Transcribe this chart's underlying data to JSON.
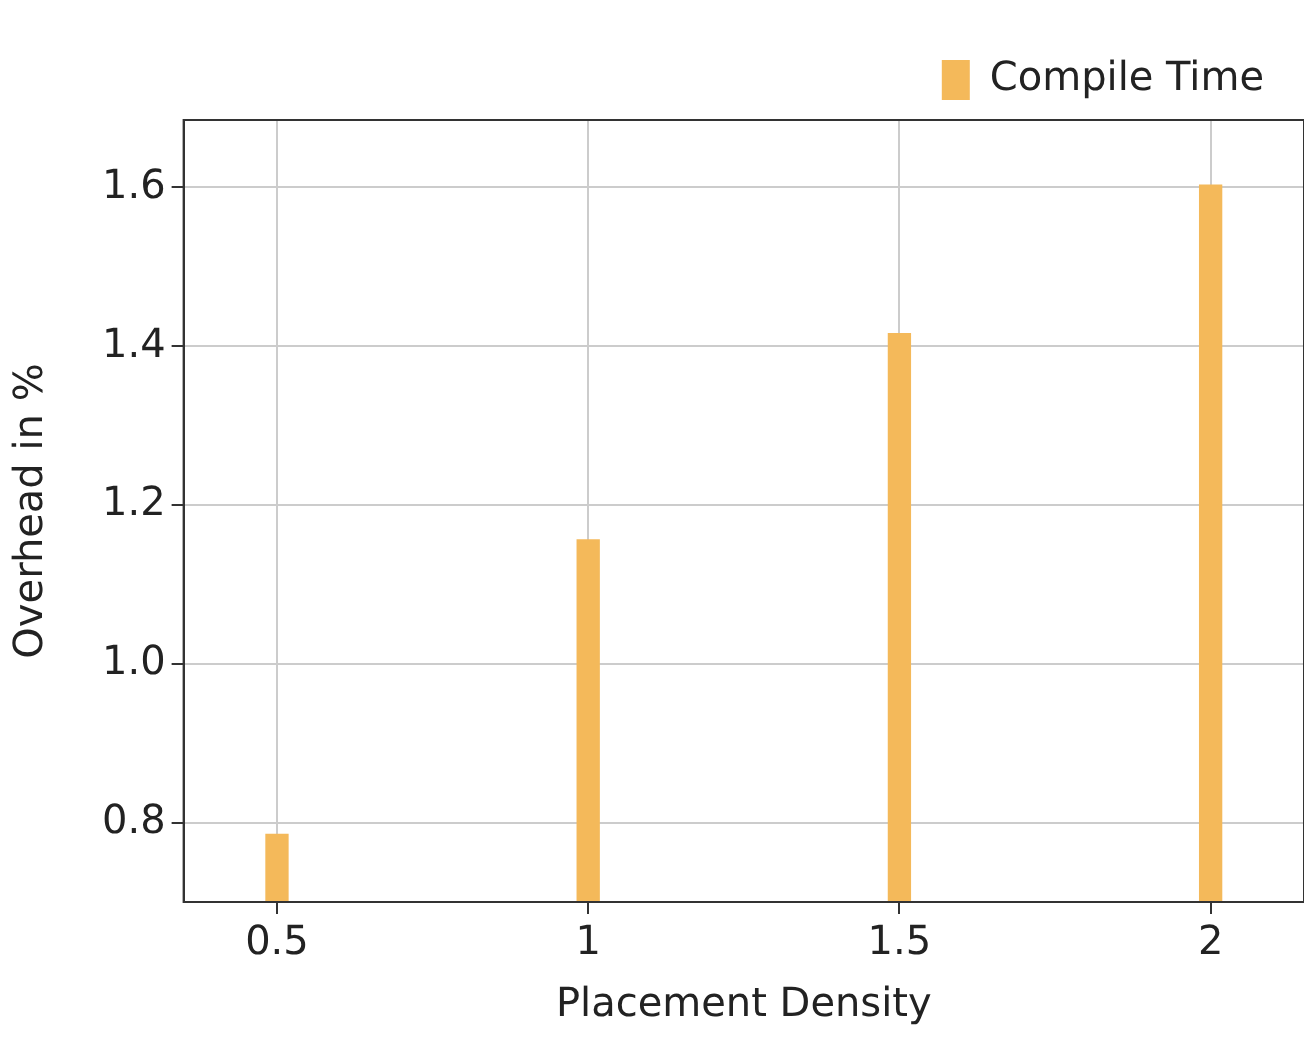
{
  "chart_data": {
    "type": "bar",
    "xlabel": "Placement Density",
    "ylabel": "Overhead in %",
    "x": [
      0.5,
      1,
      1.5,
      2
    ],
    "series": [
      {
        "name": "Compile Time",
        "color": "#f4b95a",
        "values": [
          0.785,
          1.156,
          1.416,
          1.603
        ]
      }
    ],
    "xlim": [
      0.35,
      2.15
    ],
    "xticks": [
      0.5,
      1,
      1.5,
      2
    ],
    "ylim": [
      0.7,
      1.685
    ],
    "yticks": [
      {
        "value": 0.8,
        "label": "0.8"
      },
      {
        "value": 1.0,
        "label": "1.0"
      },
      {
        "value": 1.2,
        "label": "1.2"
      },
      {
        "value": 1.4,
        "label": "1.4"
      },
      {
        "value": 1.6,
        "label": "1.6"
      }
    ],
    "grid": true,
    "legend": "top right"
  }
}
